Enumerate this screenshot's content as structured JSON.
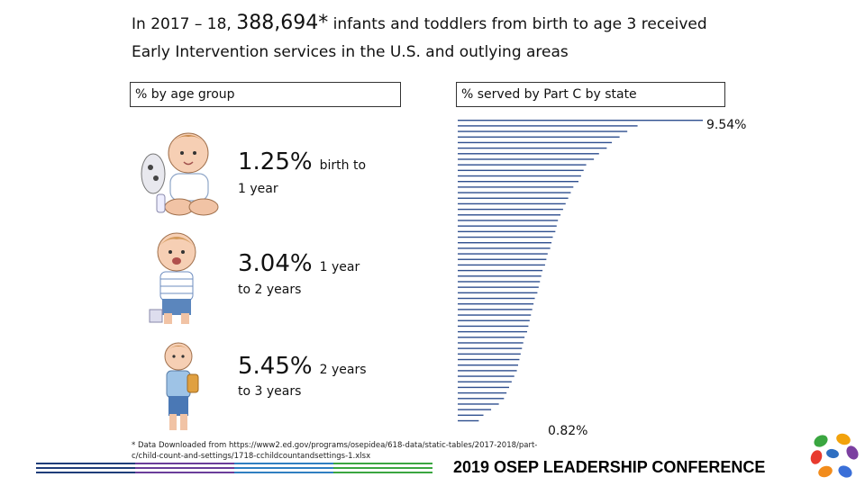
{
  "title": {
    "prefix": "In 2017 – 18,",
    "count": "388,694*",
    "suffix": "infants and toddlers from birth to age 3 received",
    "line2": "Early Intervention services in the U.S. and outlying areas"
  },
  "boxes": {
    "age_group": "% by age group",
    "part_c": "% served by Part C by state"
  },
  "age_groups": [
    {
      "pct": "1.25%",
      "label": "birth to",
      "sub": "1 year"
    },
    {
      "pct": "3.04%",
      "label": "1 year",
      "sub": "to 2 years"
    },
    {
      "pct": "5.45%",
      "label": "2 years",
      "sub": "to 3 years"
    }
  ],
  "chart_data": {
    "type": "bar",
    "orientation": "horizontal",
    "title": "% served by Part C by state",
    "max_label": "9.54%",
    "min_label": "0.82%",
    "values": [
      9.54,
      7.0,
      6.6,
      6.3,
      6.0,
      5.8,
      5.5,
      5.3,
      5.0,
      4.9,
      4.8,
      4.7,
      4.5,
      4.4,
      4.3,
      4.2,
      4.1,
      4.0,
      3.9,
      3.85,
      3.8,
      3.7,
      3.65,
      3.6,
      3.5,
      3.45,
      3.4,
      3.3,
      3.25,
      3.2,
      3.15,
      3.1,
      3.0,
      2.95,
      2.9,
      2.85,
      2.8,
      2.75,
      2.7,
      2.6,
      2.55,
      2.5,
      2.45,
      2.4,
      2.35,
      2.3,
      2.2,
      2.1,
      2.0,
      1.9,
      1.8,
      1.6,
      1.3,
      1.0,
      0.82
    ]
  },
  "footnote": "* Data Downloaded from https://www2.ed.gov/programs/osepidea/618-data/static-tables/2017-2018/part-c/child-count-and-settings/1718-cchildcountandsettings-1.xlsx",
  "conference": "2019 OSEP LEADERSHIP CONFERENCE",
  "colors": {
    "stripes": [
      "#1f3d7a",
      "#6a3d9a",
      "#2f7fc1",
      "#3aa640"
    ],
    "bar": "#2f4f8f"
  }
}
